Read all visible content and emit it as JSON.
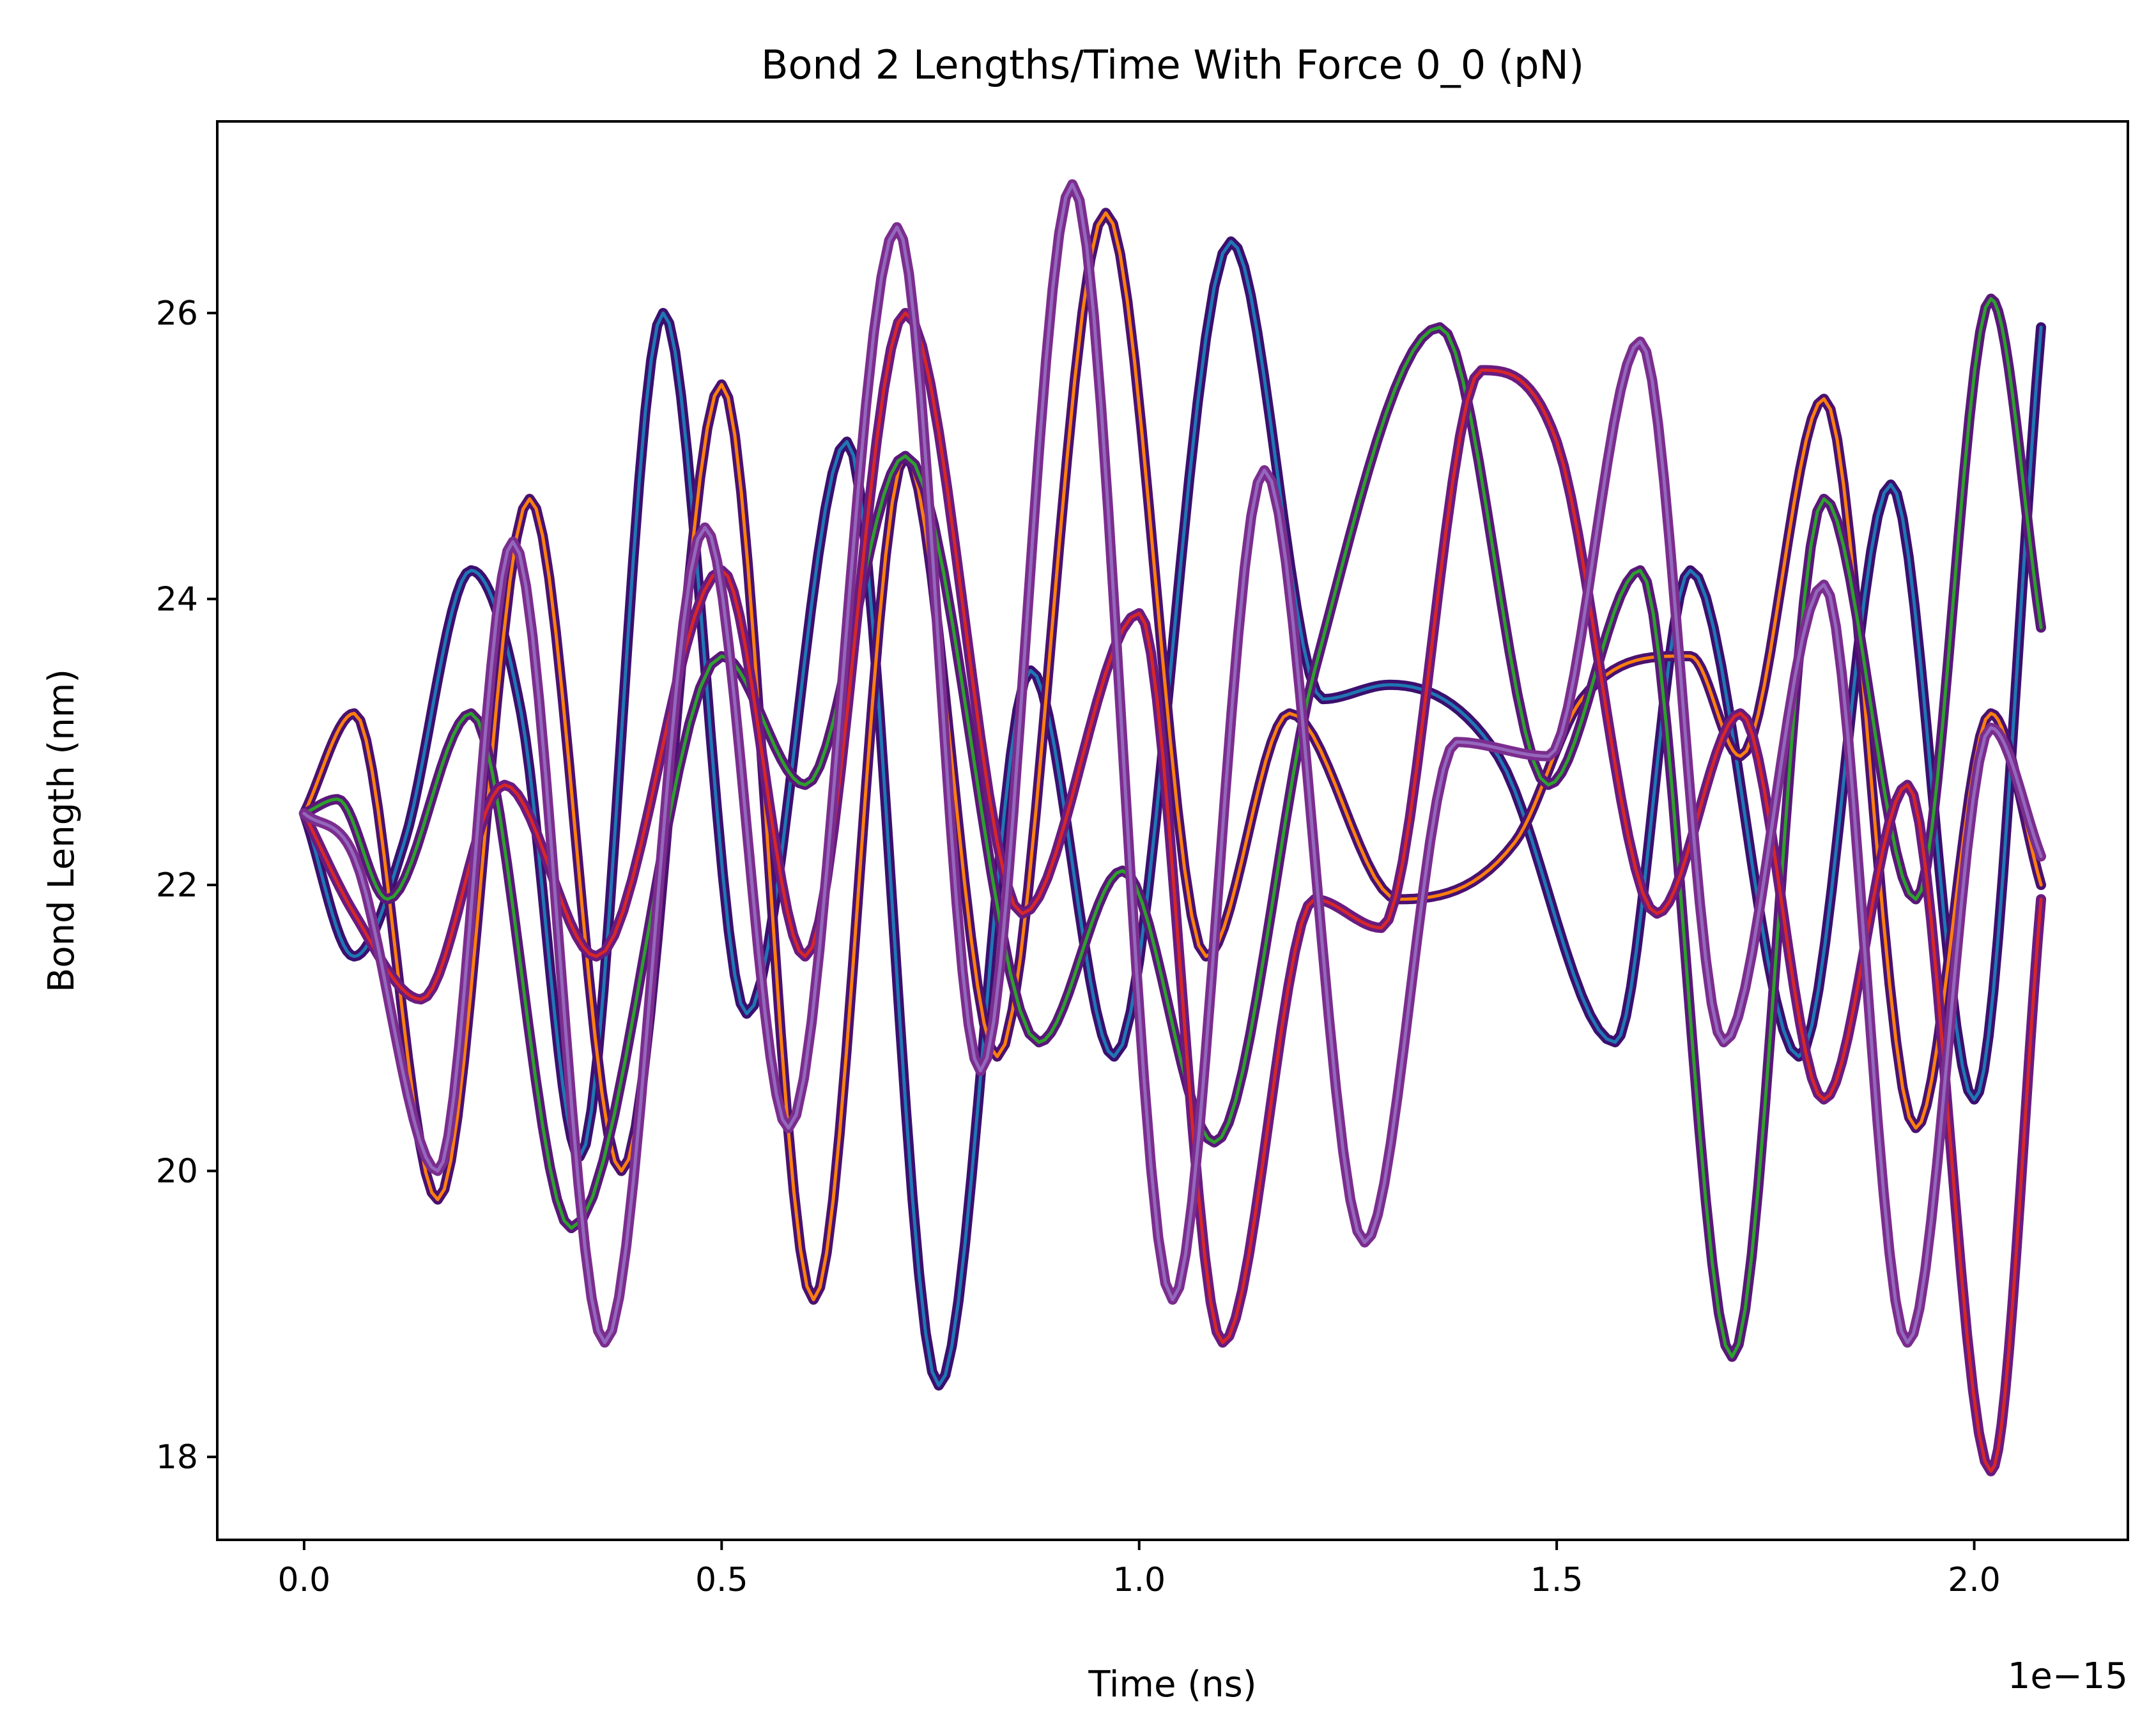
{
  "chart_data": {
    "type": "line",
    "title": "Bond 2 Lengths/Time With Force 0_0 (pN)",
    "xlabel": "Time (ns)",
    "ylabel": "Bond Length (nm)",
    "x_offset_label": "1e−15",
    "xlim": [
      -0.104,
      2.184
    ],
    "ylim": [
      17.42,
      27.34
    ],
    "x_ticks": [
      0.0,
      0.5,
      1.0,
      1.5,
      2.0
    ],
    "x_tick_labels": [
      "0.0",
      "0.5",
      "1.0",
      "1.5",
      "2.0"
    ],
    "y_ticks": [
      18,
      20,
      22,
      24,
      26
    ],
    "y_tick_labels": [
      "18",
      "20",
      "22",
      "24",
      "26"
    ],
    "grid": false,
    "legend": "none",
    "series": [
      {
        "color": "#1f77b4",
        "x": [
          0,
          0.06,
          0.12,
          0.2,
          0.26,
          0.33,
          0.43,
          0.53,
          0.65,
          0.76,
          0.87,
          0.97,
          1.11,
          1.22,
          1.3,
          1.43,
          1.57,
          1.66,
          1.79,
          1.9,
          2.0,
          2.08
        ],
        "y": [
          22.5,
          21.5,
          22.3,
          24.2,
          23.2,
          20.1,
          26.0,
          21.1,
          25.1,
          18.5,
          23.5,
          20.8,
          26.5,
          23.3,
          23.4,
          22.9,
          20.9,
          24.2,
          20.8,
          24.8,
          20.5,
          25.9
        ]
      },
      {
        "color": "#ff7f0e",
        "x": [
          0,
          0.06,
          0.16,
          0.27,
          0.38,
          0.5,
          0.61,
          0.72,
          0.83,
          0.96,
          1.08,
          1.18,
          1.31,
          1.45,
          1.53,
          1.66,
          1.72,
          1.82,
          1.93,
          2.02,
          2.08
        ],
        "y": [
          22.5,
          23.2,
          19.8,
          24.7,
          20.0,
          25.5,
          19.1,
          25.0,
          20.8,
          26.7,
          21.5,
          23.2,
          21.9,
          22.3,
          23.3,
          23.6,
          22.9,
          25.4,
          20.3,
          23.2,
          22.0
        ]
      },
      {
        "color": "#2ca02c",
        "x": [
          0,
          0.04,
          0.1,
          0.2,
          0.32,
          0.5,
          0.6,
          0.72,
          0.88,
          0.98,
          1.09,
          1.21,
          1.36,
          1.49,
          1.6,
          1.71,
          1.82,
          1.93,
          2.02,
          2.08
        ],
        "y": [
          22.5,
          22.6,
          21.9,
          23.2,
          19.6,
          23.6,
          22.7,
          25.0,
          20.9,
          22.1,
          20.2,
          23.5,
          25.9,
          22.7,
          24.2,
          18.7,
          24.7,
          21.9,
          26.1,
          23.8
        ]
      },
      {
        "color": "#d62728",
        "x": [
          0,
          0.06,
          0.14,
          0.24,
          0.35,
          0.5,
          0.6,
          0.72,
          0.86,
          1.0,
          1.1,
          1.21,
          1.29,
          1.41,
          1.5,
          1.62,
          1.72,
          1.82,
          1.92,
          2.02,
          2.08
        ],
        "y": [
          22.5,
          21.8,
          21.2,
          22.7,
          21.5,
          24.2,
          21.5,
          26.0,
          21.8,
          23.9,
          18.8,
          21.9,
          21.7,
          25.6,
          25.1,
          21.8,
          23.2,
          20.5,
          22.7,
          17.9,
          21.9
        ]
      },
      {
        "color": "#9467bd",
        "x": [
          0,
          0.06,
          0.16,
          0.25,
          0.36,
          0.48,
          0.58,
          0.71,
          0.81,
          0.92,
          1.04,
          1.15,
          1.27,
          1.38,
          1.49,
          1.6,
          1.7,
          1.82,
          1.92,
          2.02,
          2.08
        ],
        "y": [
          22.5,
          22.2,
          20.0,
          24.4,
          18.8,
          24.5,
          20.3,
          26.6,
          20.7,
          26.9,
          19.1,
          24.9,
          19.5,
          23.0,
          22.9,
          25.8,
          20.9,
          24.1,
          18.8,
          23.1,
          22.2
        ]
      }
    ]
  }
}
